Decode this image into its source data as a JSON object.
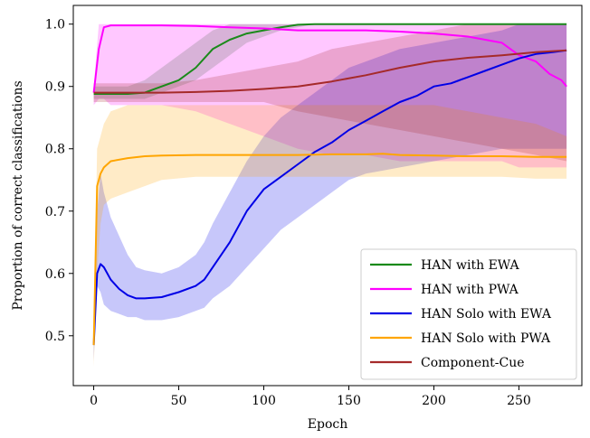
{
  "chart_data": {
    "type": "line",
    "title": "",
    "xlabel": "Epoch",
    "ylabel": "Proportion of correct classifications",
    "xlim": [
      -12,
      287
    ],
    "ylim": [
      0.42,
      1.03
    ],
    "xticks": [
      0,
      50,
      100,
      150,
      200,
      250
    ],
    "yticks": [
      0.5,
      0.6,
      0.7,
      0.8,
      0.9,
      1.0
    ],
    "ytick_labels": [
      "0.5",
      "0.6",
      "0.7",
      "0.8",
      "0.9",
      "1.0"
    ],
    "grid": false,
    "legend_position": "lower-right",
    "series": [
      {
        "name": "HAN with EWA",
        "color": "#1a8a1a",
        "x": [
          0,
          10,
          20,
          30,
          40,
          50,
          60,
          70,
          80,
          90,
          100,
          110,
          120,
          130,
          140,
          150,
          200,
          250,
          278
        ],
        "values": [
          0.888,
          0.888,
          0.888,
          0.89,
          0.9,
          0.91,
          0.93,
          0.96,
          0.975,
          0.985,
          0.99,
          0.995,
          0.999,
          1.0,
          1.0,
          1.0,
          1.0,
          1.0,
          1.0
        ],
        "lower": [
          0.88,
          0.88,
          0.88,
          0.88,
          0.89,
          0.9,
          0.91,
          0.93,
          0.95,
          0.97,
          0.98,
          0.99,
          0.995,
          1.0,
          1.0,
          1.0,
          1.0,
          1.0,
          1.0
        ],
        "upper": [
          0.9,
          0.9,
          0.9,
          0.91,
          0.93,
          0.95,
          0.97,
          0.99,
          1.0,
          1.0,
          1.0,
          1.0,
          1.0,
          1.0,
          1.0,
          1.0,
          1.0,
          1.0,
          1.0
        ]
      },
      {
        "name": "HAN with PWA",
        "color": "#ff00ff",
        "x": [
          0,
          3,
          6,
          10,
          20,
          40,
          60,
          80,
          100,
          120,
          140,
          160,
          180,
          200,
          220,
          240,
          250,
          260,
          268,
          275,
          278
        ],
        "values": [
          0.89,
          0.96,
          0.995,
          0.998,
          0.998,
          0.998,
          0.997,
          0.995,
          0.993,
          0.99,
          0.99,
          0.99,
          0.988,
          0.985,
          0.98,
          0.97,
          0.95,
          0.94,
          0.92,
          0.91,
          0.9
        ],
        "lower": [
          0.87,
          0.88,
          0.88,
          0.87,
          0.87,
          0.87,
          0.86,
          0.84,
          0.82,
          0.8,
          0.79,
          0.79,
          0.78,
          0.78,
          0.78,
          0.78,
          0.77,
          0.77,
          0.77,
          0.77,
          0.77
        ],
        "upper": [
          0.9,
          1.0,
          1.0,
          1.0,
          1.0,
          1.0,
          1.0,
          1.0,
          1.0,
          1.0,
          1.0,
          1.0,
          1.0,
          1.0,
          1.0,
          1.0,
          1.0,
          1.0,
          1.0,
          1.0,
          1.0
        ]
      },
      {
        "name": "HAN Solo with EWA",
        "color": "#0000e6",
        "x": [
          0,
          2,
          4,
          6,
          10,
          15,
          20,
          25,
          30,
          40,
          50,
          60,
          65,
          70,
          80,
          90,
          100,
          110,
          120,
          130,
          140,
          150,
          160,
          170,
          180,
          190,
          200,
          210,
          220,
          230,
          240,
          250,
          260,
          270,
          278
        ],
        "values": [
          0.485,
          0.6,
          0.615,
          0.61,
          0.59,
          0.575,
          0.565,
          0.56,
          0.56,
          0.562,
          0.57,
          0.58,
          0.59,
          0.61,
          0.65,
          0.7,
          0.735,
          0.755,
          0.775,
          0.795,
          0.81,
          0.83,
          0.845,
          0.86,
          0.875,
          0.885,
          0.9,
          0.905,
          0.915,
          0.925,
          0.935,
          0.945,
          0.952,
          0.955,
          0.958
        ],
        "lower": [
          0.46,
          0.58,
          0.57,
          0.55,
          0.54,
          0.535,
          0.53,
          0.53,
          0.525,
          0.525,
          0.53,
          0.54,
          0.545,
          0.56,
          0.58,
          0.61,
          0.64,
          0.67,
          0.69,
          0.71,
          0.73,
          0.75,
          0.76,
          0.765,
          0.77,
          0.775,
          0.78,
          0.785,
          0.79,
          0.795,
          0.8,
          0.8,
          0.8,
          0.8,
          0.8
        ],
        "upper": [
          0.5,
          0.7,
          0.76,
          0.73,
          0.69,
          0.66,
          0.63,
          0.61,
          0.605,
          0.6,
          0.61,
          0.63,
          0.65,
          0.68,
          0.73,
          0.78,
          0.82,
          0.85,
          0.87,
          0.89,
          0.91,
          0.93,
          0.94,
          0.95,
          0.96,
          0.965,
          0.97,
          0.975,
          0.98,
          0.985,
          0.99,
          1.0,
          1.0,
          1.0,
          1.0
        ]
      },
      {
        "name": "HAN Solo with PWA",
        "color": "#ffa500",
        "x": [
          0,
          2,
          4,
          6,
          10,
          20,
          30,
          40,
          60,
          80,
          100,
          120,
          140,
          160,
          170,
          180,
          200,
          220,
          240,
          260,
          278
        ],
        "values": [
          0.485,
          0.74,
          0.76,
          0.77,
          0.78,
          0.785,
          0.788,
          0.789,
          0.79,
          0.79,
          0.79,
          0.79,
          0.791,
          0.791,
          0.792,
          0.79,
          0.789,
          0.788,
          0.788,
          0.787,
          0.787
        ],
        "lower": [
          0.45,
          0.6,
          0.68,
          0.71,
          0.72,
          0.73,
          0.74,
          0.75,
          0.755,
          0.755,
          0.755,
          0.755,
          0.755,
          0.755,
          0.755,
          0.755,
          0.755,
          0.755,
          0.755,
          0.752,
          0.752
        ],
        "upper": [
          0.5,
          0.8,
          0.82,
          0.84,
          0.86,
          0.87,
          0.87,
          0.87,
          0.87,
          0.87,
          0.87,
          0.87,
          0.87,
          0.87,
          0.87,
          0.87,
          0.87,
          0.86,
          0.85,
          0.84,
          0.82
        ]
      },
      {
        "name": "Component-Cue",
        "color": "#a52a2a",
        "x": [
          0,
          20,
          40,
          60,
          80,
          100,
          120,
          140,
          160,
          180,
          200,
          220,
          240,
          260,
          278
        ],
        "values": [
          0.89,
          0.89,
          0.89,
          0.891,
          0.893,
          0.896,
          0.9,
          0.908,
          0.918,
          0.93,
          0.94,
          0.946,
          0.95,
          0.955,
          0.958
        ],
        "lower": [
          0.875,
          0.875,
          0.875,
          0.875,
          0.875,
          0.875,
          0.86,
          0.85,
          0.84,
          0.83,
          0.82,
          0.81,
          0.8,
          0.79,
          0.78
        ],
        "upper": [
          0.905,
          0.905,
          0.905,
          0.91,
          0.92,
          0.93,
          0.94,
          0.96,
          0.97,
          0.98,
          0.99,
          1.0,
          1.0,
          1.0,
          1.0
        ]
      }
    ]
  }
}
